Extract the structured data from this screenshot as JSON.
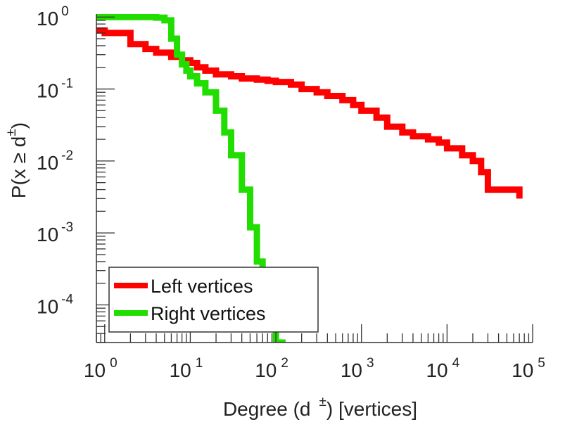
{
  "chart_data": {
    "type": "line",
    "xscale": "log",
    "yscale": "log",
    "xlim": [
      0.8,
      100000
    ],
    "ylim": [
      3e-05,
      1.1
    ],
    "xlabel": "Degree (d ±) [vertices]",
    "xlabel_main": "Degree (d",
    "xlabel_sup": "±",
    "xlabel_tail": ") [vertices]",
    "ylabel": "P(x ≥ d±)",
    "ylabel_main": "P(x ≥ d",
    "ylabel_sup": "±",
    "ylabel_tail": ")",
    "x_ticks": [
      {
        "value": 1,
        "base": "10",
        "exp": "0"
      },
      {
        "value": 10,
        "base": "10",
        "exp": "1"
      },
      {
        "value": 100,
        "base": "10",
        "exp": "2"
      },
      {
        "value": 1000,
        "base": "10",
        "exp": "3"
      },
      {
        "value": 10000,
        "base": "10",
        "exp": "4"
      },
      {
        "value": 100000,
        "base": "10",
        "exp": "5"
      }
    ],
    "y_ticks": [
      {
        "value": 1,
        "base": "10",
        "exp": "0"
      },
      {
        "value": 0.1,
        "base": "10",
        "exp": "-1"
      },
      {
        "value": 0.01,
        "base": "10",
        "exp": "-2"
      },
      {
        "value": 0.001,
        "base": "10",
        "exp": "-3"
      },
      {
        "value": 0.0001,
        "base": "10",
        "exp": "-4"
      }
    ],
    "grid": false,
    "legend_position": "bottom-left",
    "series": [
      {
        "name": "Left vertices",
        "color": "#ff0000",
        "step": true,
        "x": [
          0.8,
          1,
          2,
          3,
          4,
          6,
          8,
          10,
          12,
          15,
          20,
          30,
          40,
          60,
          80,
          100,
          150,
          200,
          300,
          400,
          600,
          800,
          1000,
          1500,
          2000,
          3000,
          4000,
          6000,
          8000,
          10000,
          15000,
          20000,
          25000,
          30000,
          50000,
          70000
        ],
        "y": [
          0.65,
          0.6,
          0.42,
          0.36,
          0.32,
          0.28,
          0.25,
          0.23,
          0.2,
          0.18,
          0.16,
          0.15,
          0.14,
          0.135,
          0.13,
          0.125,
          0.115,
          0.1,
          0.09,
          0.08,
          0.07,
          0.06,
          0.05,
          0.04,
          0.03,
          0.025,
          0.022,
          0.02,
          0.018,
          0.015,
          0.012,
          0.01,
          0.007,
          0.004,
          0.004,
          0.003
        ]
      },
      {
        "name": "Right vertices",
        "color": "#22dd00",
        "step": true,
        "x": [
          0.8,
          1,
          2,
          3,
          4,
          5,
          6,
          7,
          8,
          9,
          10,
          12,
          15,
          20,
          25,
          30,
          40,
          50,
          60,
          70,
          80,
          100,
          130
        ],
        "y": [
          1.0,
          1.0,
          1.0,
          1.0,
          0.98,
          0.9,
          0.5,
          0.3,
          0.22,
          0.18,
          0.15,
          0.12,
          0.09,
          0.05,
          0.025,
          0.012,
          0.004,
          0.0012,
          0.0004,
          0.00012,
          5e-05,
          3e-05,
          3e-05
        ]
      }
    ]
  }
}
